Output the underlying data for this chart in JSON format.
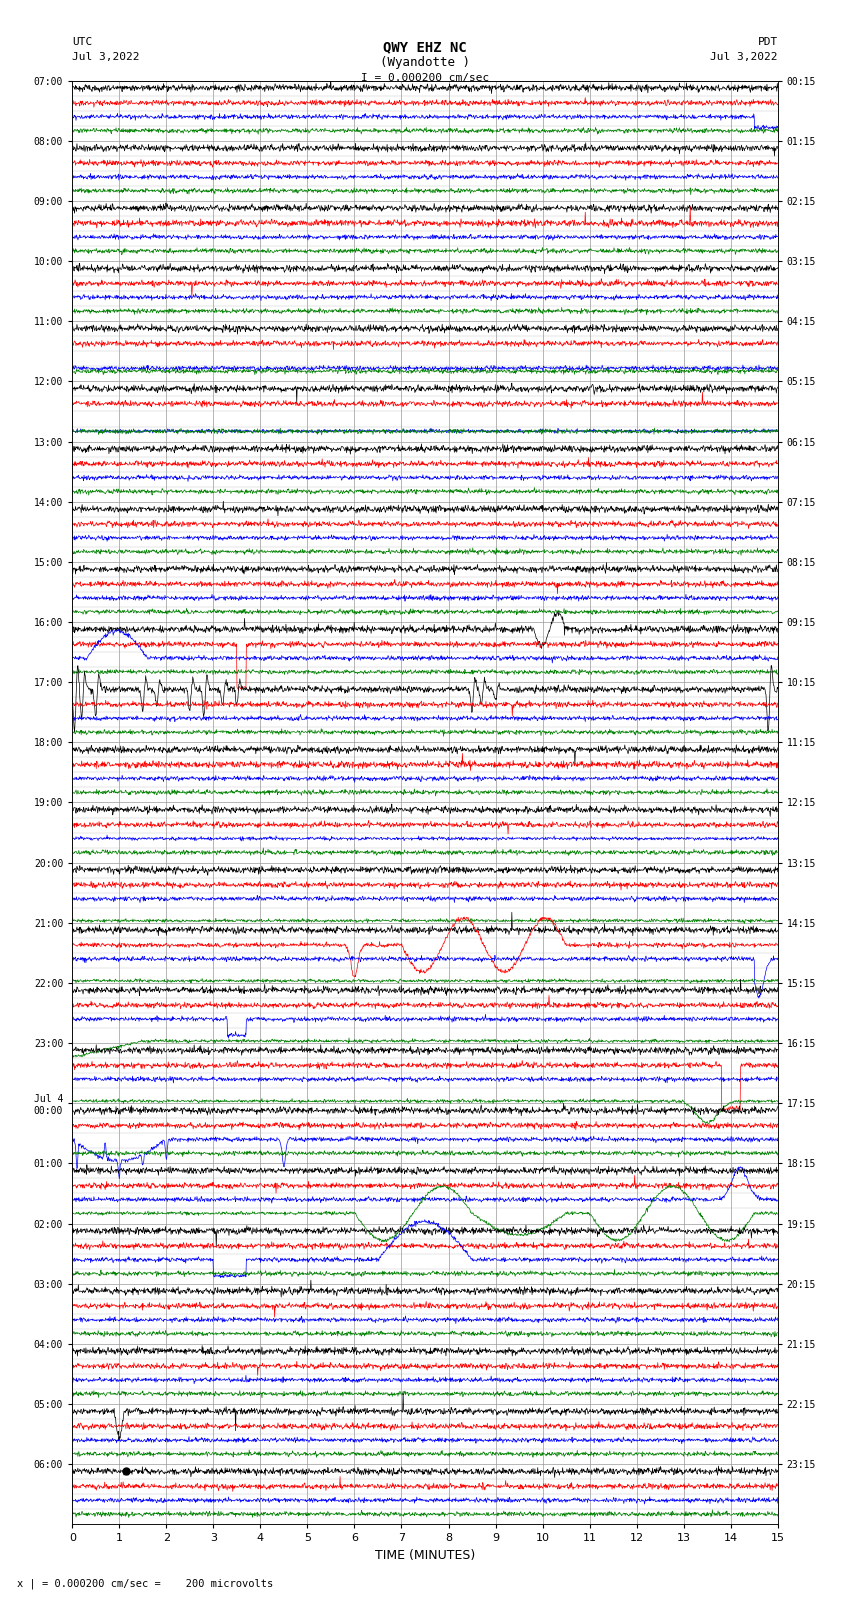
{
  "title_line1": "QWY EHZ NC",
  "title_line2": "(Wyandotte )",
  "scale_text": "I = 0.000200 cm/sec",
  "bottom_label": "x | = 0.000200 cm/sec =    200 microvolts",
  "xlabel": "TIME (MINUTES)",
  "time_min": 0,
  "time_max": 15,
  "xticks": [
    0,
    1,
    2,
    3,
    4,
    5,
    6,
    7,
    8,
    9,
    10,
    11,
    12,
    13,
    14,
    15
  ],
  "left_times": [
    "07:00",
    "08:00",
    "09:00",
    "10:00",
    "11:00",
    "12:00",
    "13:00",
    "14:00",
    "15:00",
    "16:00",
    "17:00",
    "18:00",
    "19:00",
    "20:00",
    "21:00",
    "22:00",
    "23:00",
    "Jul 4\n00:00",
    "01:00",
    "02:00",
    "03:00",
    "04:00",
    "05:00",
    "06:00"
  ],
  "right_times": [
    "00:15",
    "01:15",
    "02:15",
    "03:15",
    "04:15",
    "05:15",
    "06:15",
    "07:15",
    "08:15",
    "09:15",
    "10:15",
    "11:15",
    "12:15",
    "13:15",
    "14:15",
    "15:15",
    "16:15",
    "17:15",
    "18:15",
    "19:15",
    "20:15",
    "21:15",
    "22:15",
    "23:15"
  ],
  "n_rows": 24,
  "bg_color": "white",
  "grid_color": "#999999",
  "fig_width": 8.5,
  "fig_height": 16.13
}
